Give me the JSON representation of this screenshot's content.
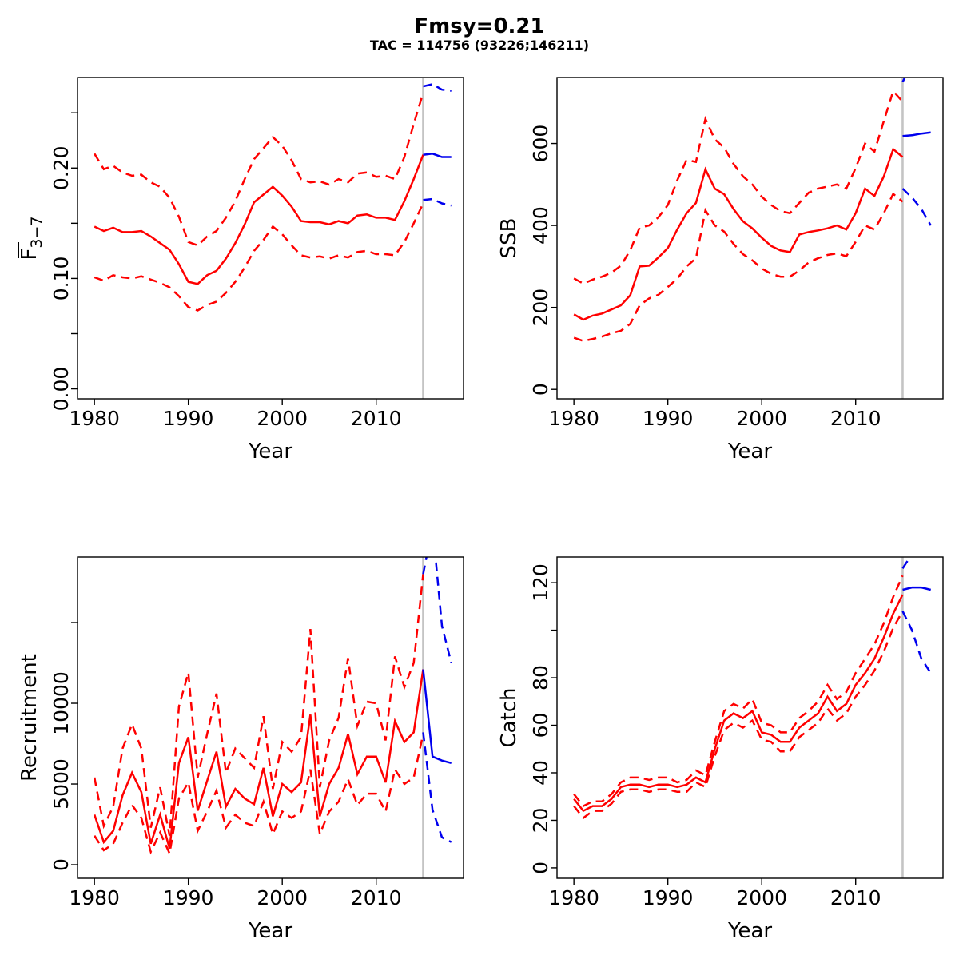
{
  "header": {
    "title": "Fmsy=0.21",
    "subtitle": "TAC = 114756 (93226;146211)"
  },
  "colors": {
    "estimate": "#ff0000",
    "forecast": "#0000ee",
    "divider": "#c4c4c4",
    "axis": "#000000",
    "text": "#000000"
  },
  "years_hist": [
    1980,
    1981,
    1982,
    1983,
    1984,
    1985,
    1986,
    1987,
    1988,
    1989,
    1990,
    1991,
    1992,
    1993,
    1994,
    1995,
    1996,
    1997,
    1998,
    1999,
    2000,
    2001,
    2002,
    2003,
    2004,
    2005,
    2006,
    2007,
    2008,
    2009,
    2010,
    2011,
    2012,
    2013,
    2014,
    2015
  ],
  "years_forecast": [
    2015,
    2016,
    2017,
    2018
  ],
  "chart_data": [
    {
      "name": "fbar",
      "type": "line",
      "ylabel": {
        "main": "F",
        "sub": "3−7",
        "overline": true
      },
      "xlabel": "Year",
      "xlim": [
        1978.2,
        2019.3
      ],
      "ylim": [
        -0.009,
        0.282
      ],
      "xticks": {
        "values": [
          1980,
          1990,
          2000,
          2010
        ],
        "labels": [
          "1980",
          "1990",
          "2000",
          "2010"
        ]
      },
      "yticks": {
        "values": [
          0,
          0.05,
          0.1,
          0.15,
          0.2,
          0.25
        ],
        "labels": [
          "0.00",
          "",
          "0.10",
          "",
          "0.20",
          ""
        ]
      },
      "forecast_start": 2015,
      "series": [
        {
          "name": "ci-upper",
          "x": "hist",
          "color": "estimate",
          "dash": true,
          "values": [
            0.213,
            0.199,
            0.202,
            0.196,
            0.193,
            0.194,
            0.187,
            0.183,
            0.173,
            0.156,
            0.133,
            0.13,
            0.138,
            0.143,
            0.155,
            0.17,
            0.19,
            0.208,
            0.218,
            0.228,
            0.22,
            0.207,
            0.19,
            0.187,
            0.188,
            0.185,
            0.19,
            0.187,
            0.195,
            0.196,
            0.192,
            0.193,
            0.19,
            0.21,
            0.24,
            0.268
          ]
        },
        {
          "name": "ci-lower",
          "x": "hist",
          "color": "estimate",
          "dash": true,
          "values": [
            0.101,
            0.098,
            0.103,
            0.101,
            0.1,
            0.102,
            0.099,
            0.096,
            0.092,
            0.084,
            0.074,
            0.071,
            0.076,
            0.079,
            0.087,
            0.097,
            0.11,
            0.125,
            0.135,
            0.147,
            0.14,
            0.13,
            0.121,
            0.119,
            0.12,
            0.118,
            0.121,
            0.119,
            0.124,
            0.125,
            0.122,
            0.122,
            0.121,
            0.133,
            0.15,
            0.168
          ]
        },
        {
          "name": "estimate",
          "x": "hist",
          "color": "estimate",
          "dash": false,
          "values": [
            0.147,
            0.143,
            0.146,
            0.142,
            0.142,
            0.143,
            0.138,
            0.132,
            0.126,
            0.113,
            0.097,
            0.095,
            0.103,
            0.107,
            0.118,
            0.132,
            0.149,
            0.169,
            0.176,
            0.183,
            0.175,
            0.165,
            0.152,
            0.151,
            0.151,
            0.149,
            0.152,
            0.15,
            0.157,
            0.158,
            0.155,
            0.155,
            0.153,
            0.17,
            0.19,
            0.212
          ]
        },
        {
          "name": "forecast-ci-upper",
          "x": "forecast",
          "color": "forecast",
          "dash": true,
          "values": [
            0.274,
            0.276,
            0.271,
            0.27
          ]
        },
        {
          "name": "forecast-ci-lower",
          "x": "forecast",
          "color": "forecast",
          "dash": true,
          "values": [
            0.171,
            0.172,
            0.168,
            0.166
          ]
        },
        {
          "name": "forecast",
          "x": "forecast",
          "color": "forecast",
          "dash": false,
          "values": [
            0.212,
            0.213,
            0.21,
            0.21
          ]
        }
      ]
    },
    {
      "name": "ssb",
      "type": "line",
      "ylabel": {
        "main": "SSB"
      },
      "xlabel": "Year",
      "xlim": [
        1978.2,
        2019.3
      ],
      "ylim": [
        -23,
        761
      ],
      "xticks": {
        "values": [
          1980,
          1990,
          2000,
          2010
        ],
        "labels": [
          "1980",
          "1990",
          "2000",
          "2010"
        ]
      },
      "yticks": {
        "values": [
          0,
          200,
          400,
          600
        ],
        "labels": [
          "0",
          "200",
          "400",
          "600"
        ]
      },
      "forecast_start": 2015,
      "series": [
        {
          "name": "ci-upper",
          "x": "hist",
          "color": "estimate",
          "dash": true,
          "values": [
            271,
            258,
            268,
            275,
            285,
            302,
            340,
            395,
            400,
            420,
            450,
            510,
            560,
            555,
            660,
            610,
            590,
            550,
            520,
            500,
            470,
            450,
            435,
            430,
            455,
            480,
            490,
            495,
            500,
            490,
            540,
            600,
            580,
            655,
            728,
            702
          ]
        },
        {
          "name": "ci-lower",
          "x": "hist",
          "color": "estimate",
          "dash": true,
          "values": [
            126,
            118,
            123,
            129,
            137,
            143,
            160,
            205,
            222,
            231,
            250,
            270,
            300,
            320,
            437,
            400,
            385,
            355,
            330,
            315,
            295,
            282,
            275,
            275,
            290,
            310,
            320,
            328,
            332,
            325,
            360,
            400,
            390,
            430,
            477,
            458
          ]
        },
        {
          "name": "estimate",
          "x": "hist",
          "color": "estimate",
          "dash": false,
          "values": [
            183,
            170,
            180,
            185,
            195,
            205,
            230,
            300,
            302,
            322,
            345,
            390,
            430,
            455,
            537,
            490,
            476,
            440,
            410,
            393,
            370,
            350,
            339,
            335,
            378,
            384,
            388,
            393,
            400,
            390,
            430,
            490,
            472,
            520,
            586,
            567
          ]
        },
        {
          "name": "forecast-ci-upper",
          "x": "forecast",
          "color": "forecast",
          "dash": true,
          "values": [
            750,
            795,
            805,
            810
          ]
        },
        {
          "name": "forecast-ci-lower",
          "x": "forecast",
          "color": "forecast",
          "dash": true,
          "values": [
            490,
            468,
            440,
            400
          ]
        },
        {
          "name": "forecast",
          "x": "forecast",
          "color": "forecast",
          "dash": false,
          "values": [
            618,
            620,
            624,
            627
          ]
        }
      ]
    },
    {
      "name": "recruitment",
      "type": "line",
      "ylabel": {
        "main": "Recruitment"
      },
      "xlabel": "Year",
      "xlim": [
        1978.2,
        2019.3
      ],
      "ylim": [
        -840,
        19060
      ],
      "xticks": {
        "values": [
          1980,
          1990,
          2000,
          2010
        ],
        "labels": [
          "1980",
          "1990",
          "2000",
          "2010"
        ]
      },
      "yticks": {
        "values": [
          0,
          5000,
          10000,
          15000
        ],
        "labels": [
          "0",
          "5000",
          "10000",
          ""
        ]
      },
      "forecast_start": 2015,
      "series": [
        {
          "name": "ci-upper",
          "x": "hist",
          "color": "estimate",
          "dash": true,
          "values": [
            5400,
            2400,
            3600,
            7200,
            8700,
            7200,
            2300,
            4800,
            1800,
            9800,
            11900,
            5400,
            8100,
            10600,
            5700,
            7200,
            6600,
            6000,
            9200,
            4700,
            7600,
            7000,
            7900,
            14600,
            4800,
            7700,
            9100,
            12800,
            8600,
            10100,
            10000,
            7700,
            12900,
            11000,
            12500,
            18000
          ]
        },
        {
          "name": "ci-lower",
          "x": "hist",
          "color": "estimate",
          "dash": true,
          "values": [
            1800,
            900,
            1300,
            2600,
            3700,
            2900,
            800,
            2000,
            700,
            4100,
            5100,
            2100,
            3300,
            4600,
            2300,
            3100,
            2600,
            2400,
            3900,
            1900,
            3300,
            2900,
            3300,
            5900,
            1900,
            3300,
            3900,
            5300,
            3700,
            4400,
            4400,
            3300,
            5900,
            5000,
            5400,
            8100
          ]
        },
        {
          "name": "estimate",
          "x": "hist",
          "color": "estimate",
          "dash": false,
          "values": [
            3100,
            1400,
            2100,
            4300,
            5700,
            4500,
            1300,
            3100,
            1000,
            6300,
            7900,
            3350,
            5200,
            7000,
            3600,
            4700,
            4100,
            3750,
            6000,
            3000,
            5000,
            4500,
            5100,
            9300,
            3000,
            5000,
            6000,
            8100,
            5600,
            6700,
            6700,
            5100,
            8900,
            7600,
            8200,
            12100
          ]
        },
        {
          "name": "forecast-ci-upper",
          "x": "forecast",
          "color": "forecast",
          "dash": true,
          "values": [
            18000,
            21000,
            14800,
            12500
          ]
        },
        {
          "name": "forecast-ci-lower",
          "x": "forecast",
          "color": "forecast",
          "dash": true,
          "values": [
            8200,
            3400,
            1700,
            1400
          ]
        },
        {
          "name": "forecast",
          "x": "forecast",
          "color": "forecast",
          "dash": false,
          "values": [
            12100,
            6700,
            6450,
            6300
          ]
        }
      ]
    },
    {
      "name": "catch",
      "type": "line",
      "ylabel": {
        "main": "Catch"
      },
      "xlabel": "Year",
      "xlim": [
        1978.2,
        2019.3
      ],
      "ylim": [
        -4.4,
        130.8
      ],
      "xticks": {
        "values": [
          1980,
          1990,
          2000,
          2010
        ],
        "labels": [
          "1980",
          "1990",
          "2000",
          "2010"
        ]
      },
      "yticks": {
        "values": [
          0,
          20,
          40,
          60,
          80,
          100,
          120
        ],
        "labels": [
          "0",
          "20",
          "40",
          "60",
          "80",
          "",
          "120"
        ]
      },
      "forecast_start": 2015,
      "series": [
        {
          "name": "ci-upper",
          "x": "hist",
          "color": "estimate",
          "dash": true,
          "values": [
            31,
            26,
            28,
            28,
            31,
            36,
            38,
            38,
            37,
            38,
            38,
            36,
            37,
            41,
            39,
            53,
            66,
            69,
            67,
            71,
            61,
            60,
            57,
            57,
            63,
            66,
            70,
            77,
            71,
            74,
            82,
            88,
            94,
            103,
            114,
            123
          ]
        },
        {
          "name": "ci-lower",
          "x": "hist",
          "color": "estimate",
          "dash": true,
          "values": [
            26,
            21,
            24,
            24,
            27,
            32,
            33,
            33,
            32,
            33,
            33,
            32,
            32,
            36,
            34,
            47,
            58,
            61,
            59,
            62,
            54,
            53,
            49,
            49,
            55,
            58,
            61,
            67,
            62,
            65,
            72,
            77,
            83,
            91,
            101,
            108
          ]
        },
        {
          "name": "estimate",
          "x": "hist",
          "color": "estimate",
          "dash": false,
          "values": [
            29,
            24,
            26,
            26,
            29,
            34,
            35,
            35,
            34,
            35,
            35,
            34,
            35,
            38,
            36,
            50,
            62,
            65,
            63,
            66,
            57,
            56,
            53,
            53,
            59,
            62,
            65,
            72,
            66,
            69,
            77,
            82,
            88,
            97,
            107,
            115
          ]
        },
        {
          "name": "forecast-ci-upper",
          "x": "forecast",
          "color": "forecast",
          "dash": true,
          "values": [
            126,
            132,
            134,
            135
          ]
        },
        {
          "name": "forecast-ci-lower",
          "x": "forecast",
          "color": "forecast",
          "dash": true,
          "values": [
            108,
            100,
            88,
            82
          ]
        },
        {
          "name": "forecast",
          "x": "forecast",
          "color": "forecast",
          "dash": false,
          "values": [
            117,
            118,
            118,
            117
          ]
        }
      ]
    }
  ]
}
